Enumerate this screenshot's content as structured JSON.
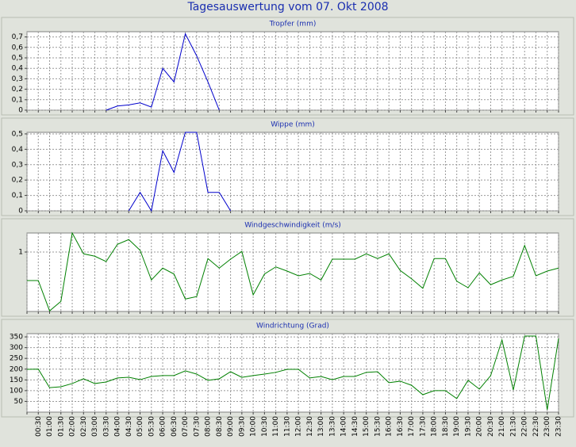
{
  "title": "Tagesauswertung vom 07. Okt 2008",
  "chart_data": [
    {
      "type": "line",
      "title": "Tropfer (mm)",
      "series": [
        {
          "name": "Tropfer",
          "color": "#0000cc",
          "values": [
            null,
            null,
            null,
            null,
            null,
            null,
            null,
            0,
            0.04,
            0.05,
            0.07,
            0.03,
            0.4,
            0.27,
            0.73,
            0.52,
            0.27,
            0,
            null,
            null,
            null,
            null,
            null,
            null,
            null,
            null,
            null,
            null,
            null,
            null,
            null,
            null,
            null,
            null,
            null,
            null,
            null,
            null,
            null,
            null,
            null,
            null,
            null,
            null,
            null,
            null,
            null,
            null
          ]
        }
      ],
      "ylim": [
        0,
        0.75
      ],
      "yticks": [
        0,
        {
          "value": 0.1,
          "label": "0,1"
        },
        {
          "value": 0.2,
          "label": "0,2"
        },
        {
          "value": 0.3,
          "label": "0,3"
        },
        {
          "value": 0.4,
          "label": "0,4"
        },
        {
          "value": 0.5,
          "label": "0,5"
        },
        {
          "value": 0.6,
          "label": "0,6"
        },
        {
          "value": 0.7,
          "label": "0,7"
        }
      ],
      "grid": true
    },
    {
      "type": "line",
      "title": "Wippe (mm)",
      "series": [
        {
          "name": "Wippe",
          "color": "#0000cc",
          "values": [
            null,
            null,
            null,
            null,
            null,
            null,
            null,
            null,
            null,
            0,
            0.12,
            0,
            0.39,
            0.25,
            0.51,
            0.51,
            0.12,
            0.12,
            0,
            null,
            null,
            null,
            null,
            null,
            null,
            null,
            null,
            null,
            null,
            null,
            null,
            null,
            null,
            null,
            null,
            null,
            null,
            null,
            null,
            null,
            null,
            null,
            null,
            null,
            null,
            null,
            null,
            null
          ]
        }
      ],
      "ylim": [
        0,
        0.51
      ],
      "yticks": [
        0,
        {
          "value": 0.1,
          "label": "0,1"
        },
        {
          "value": 0.2,
          "label": "0,2"
        },
        {
          "value": 0.3,
          "label": "0,3"
        },
        {
          "value": 0.4,
          "label": "0,4"
        },
        {
          "value": 0.5,
          "label": "0,5"
        }
      ],
      "grid": true
    },
    {
      "type": "line",
      "title": "Windgeschwindigkeit (m/s)",
      "series": [
        {
          "name": "Windgeschwindigkeit",
          "color": "#008000",
          "values": [
            0.52,
            0.52,
            0.01,
            0.17,
            1.32,
            0.97,
            0.93,
            0.84,
            1.13,
            1.21,
            1.03,
            0.53,
            0.73,
            0.63,
            0.21,
            0.25,
            0.89,
            0.73,
            0.88,
            1.01,
            0.28,
            0.63,
            0.75,
            0.68,
            0.6,
            0.64,
            0.53,
            0.88,
            0.88,
            0.88,
            0.97,
            0.89,
            0.97,
            0.69,
            0.55,
            0.39,
            0.89,
            0.89,
            0.51,
            0.4,
            0.65,
            0.45,
            0.53,
            0.59,
            1.11,
            0.6,
            0.68,
            0.73
          ]
        }
      ],
      "ylim": [
        0,
        1.32
      ],
      "yticks": [
        1
      ],
      "grid": true
    },
    {
      "type": "line",
      "title": "Windrichtung (Grad)",
      "categories": [
        null,
        "00:30",
        "01:00",
        "01:30",
        "02:00",
        "02:30",
        "03:00",
        "03:30",
        "04:00",
        "04:30",
        "05:00",
        "05:30",
        "06:00",
        "06:30",
        "07:00",
        "07:30",
        "08:00",
        "08:30",
        "09:00",
        "09:30",
        "10:00",
        "10:30",
        "11:00",
        "11:30",
        "12:00",
        "12:30",
        "13:00",
        "13:30",
        "14:00",
        "14:30",
        "15:00",
        "15:30",
        "16:00",
        "16:30",
        "17:00",
        "17:30",
        "18:00",
        "18:30",
        "19:00",
        "19:30",
        "20:00",
        "20:30",
        "21:00",
        "21:30",
        "22:00",
        "22:30",
        "23:00",
        "23:30"
      ],
      "series": [
        {
          "name": "Windrichtung",
          "color": "#008000",
          "values": [
            199,
            200,
            114,
            118,
            133,
            155,
            133,
            140,
            159,
            162,
            151,
            166,
            170,
            170,
            192,
            177,
            148,
            155,
            188,
            162,
            170,
            177,
            185,
            199,
            199,
            159,
            166,
            151,
            166,
            166,
            185,
            188,
            137,
            144,
            125,
            81,
            100,
            100,
            63,
            148,
            107,
            170,
            336,
            103,
            354,
            354,
            11,
            343
          ]
        }
      ],
      "ylim": [
        0,
        365
      ],
      "yticks": [
        50,
        100,
        150,
        200,
        250,
        300,
        350
      ],
      "grid": true
    }
  ]
}
